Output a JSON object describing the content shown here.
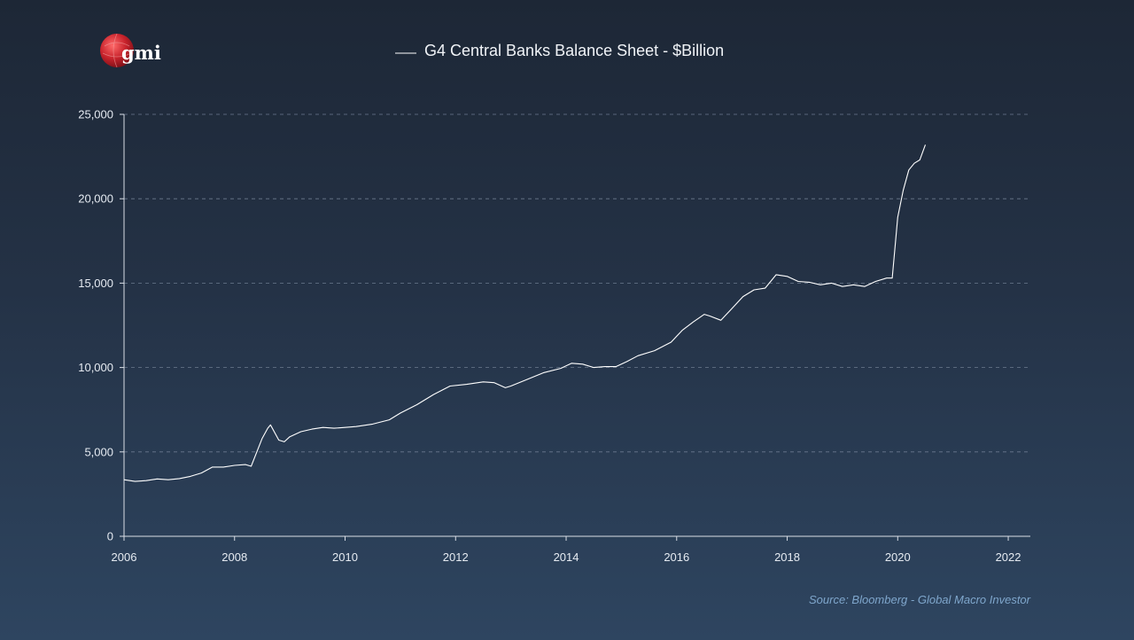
{
  "logo": {
    "text": "gmi"
  },
  "source": "Source: Bloomberg - Global Macro Investor",
  "colors": {
    "line": "#ffffff",
    "grid": "#6b7a8e",
    "logo_red": "#c8232c",
    "source_text": "#7fa6cc"
  },
  "chart_data": {
    "type": "line",
    "title": "",
    "xlabel": "",
    "ylabel": "",
    "xlim": [
      2006,
      2022.4
    ],
    "ylim": [
      0,
      25000
    ],
    "x_ticks": [
      2006,
      2008,
      2010,
      2012,
      2014,
      2016,
      2018,
      2020,
      2022
    ],
    "x_tick_labels": [
      "2006",
      "2008",
      "2010",
      "2012",
      "2014",
      "2016",
      "2018",
      "2020",
      "2022"
    ],
    "y_ticks": [
      0,
      5000,
      10000,
      15000,
      20000,
      25000
    ],
    "y_tick_labels": [
      "0",
      "5,000",
      "10,000",
      "15,000",
      "20,000",
      "25,000"
    ],
    "grid": "horizontal dashed",
    "legend": "top-center",
    "series": [
      {
        "name": "G4 Central Banks Balance Sheet - $Billion",
        "x": [
          2006.0,
          2006.2,
          2006.4,
          2006.6,
          2006.8,
          2007.0,
          2007.2,
          2007.4,
          2007.6,
          2007.8,
          2008.0,
          2008.2,
          2008.3,
          2008.5,
          2008.6,
          2008.65,
          2008.8,
          2008.9,
          2009.0,
          2009.2,
          2009.4,
          2009.6,
          2009.8,
          2010.0,
          2010.2,
          2010.5,
          2010.8,
          2011.0,
          2011.3,
          2011.6,
          2011.9,
          2012.2,
          2012.5,
          2012.7,
          2012.9,
          2013.0,
          2013.3,
          2013.6,
          2013.9,
          2014.1,
          2014.3,
          2014.5,
          2014.7,
          2014.9,
          2015.1,
          2015.3,
          2015.6,
          2015.9,
          2016.1,
          2016.3,
          2016.5,
          2016.6,
          2016.8,
          2017.0,
          2017.2,
          2017.4,
          2017.6,
          2017.8,
          2018.0,
          2018.2,
          2018.4,
          2018.6,
          2018.8,
          2019.0,
          2019.2,
          2019.4,
          2019.6,
          2019.8,
          2019.9,
          2020.0,
          2020.1,
          2020.2,
          2020.3,
          2020.4,
          2020.5
        ],
        "values": [
          3350,
          3250,
          3300,
          3400,
          3350,
          3420,
          3550,
          3750,
          4100,
          4100,
          4200,
          4250,
          4150,
          5800,
          6400,
          6600,
          5700,
          5600,
          5900,
          6200,
          6350,
          6450,
          6400,
          6450,
          6500,
          6650,
          6900,
          7300,
          7800,
          8400,
          8900,
          9000,
          9150,
          9100,
          8800,
          8900,
          9300,
          9700,
          9950,
          10250,
          10200,
          10000,
          10050,
          10050,
          10350,
          10700,
          11000,
          11500,
          12200,
          12700,
          13150,
          13050,
          12800,
          13500,
          14200,
          14600,
          14700,
          15500,
          15400,
          15100,
          15050,
          14900,
          15000,
          14800,
          14900,
          14800,
          15100,
          15300,
          15300,
          18900,
          20500,
          21700,
          22100,
          22300,
          23200
        ]
      }
    ]
  }
}
